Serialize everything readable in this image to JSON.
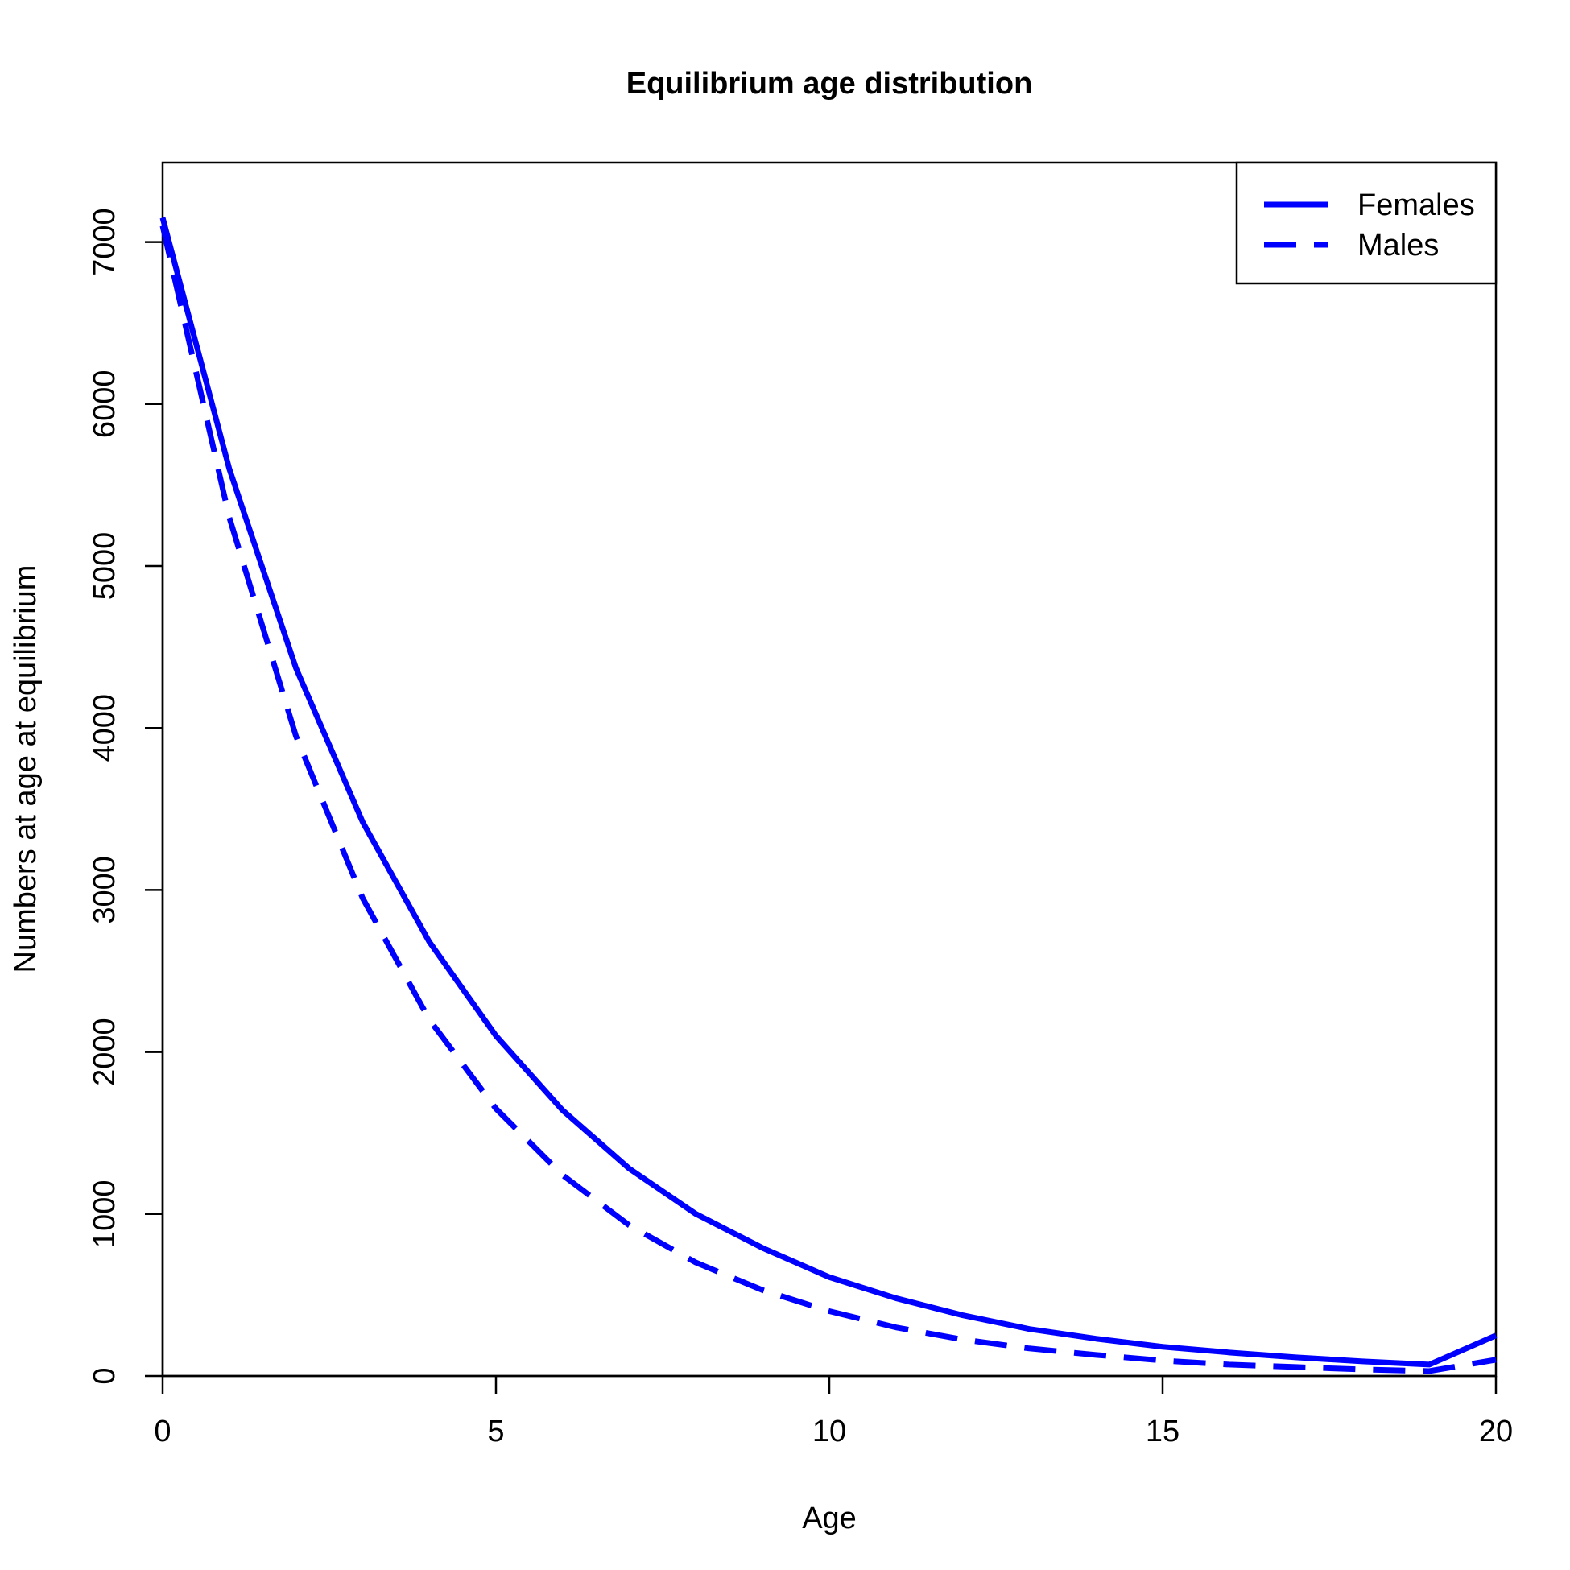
{
  "chart_data": {
    "type": "line",
    "title": "Equilibrium age distribution",
    "xlabel": "Age",
    "ylabel": "Numbers at age at equilibrium",
    "xlim": [
      0,
      20
    ],
    "ylim": [
      0,
      7500
    ],
    "x_ticks": [
      0,
      5,
      10,
      15,
      20
    ],
    "y_ticks": [
      0,
      1000,
      2000,
      3000,
      4000,
      5000,
      6000,
      7000
    ],
    "grid": false,
    "legend_position": "top-right",
    "line_color": "#0000ff",
    "x": [
      0,
      1,
      2,
      3,
      4,
      5,
      6,
      7,
      8,
      9,
      10,
      11,
      12,
      13,
      14,
      15,
      16,
      17,
      18,
      19,
      20
    ],
    "series": [
      {
        "name": "Females",
        "style": "solid",
        "values": [
          7150,
          5600,
          4370,
          3420,
          2680,
          2100,
          1640,
          1280,
          1000,
          790,
          610,
          480,
          375,
          290,
          230,
          180,
          145,
          115,
          90,
          70,
          250
        ]
      },
      {
        "name": "Males",
        "style": "dashed",
        "values": [
          7100,
          5300,
          3950,
          2950,
          2200,
          1650,
          1240,
          930,
          700,
          530,
          400,
          300,
          225,
          170,
          130,
          95,
          70,
          55,
          40,
          30,
          100
        ]
      }
    ]
  }
}
